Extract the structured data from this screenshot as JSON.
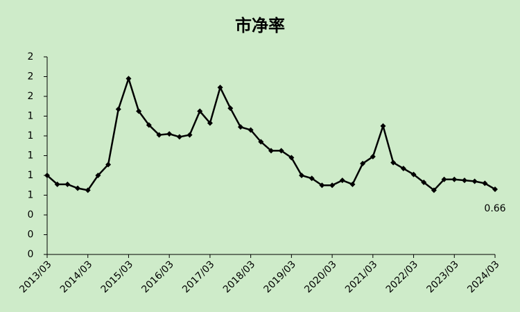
{
  "chart_data": {
    "type": "line",
    "title": "市净率",
    "categories": [
      "2013/03",
      null,
      null,
      null,
      "2014/03",
      null,
      null,
      null,
      "2015/03",
      null,
      null,
      null,
      "2016/03",
      null,
      null,
      null,
      "2017/03",
      null,
      null,
      null,
      "2018/03",
      null,
      null,
      null,
      "2019/03",
      null,
      null,
      null,
      "2020/03",
      null,
      null,
      null,
      "2021/03",
      null,
      null,
      null,
      "2022/03",
      null,
      null,
      null,
      "2023/03",
      null,
      null,
      null,
      "2024/03"
    ],
    "values": [
      0.8,
      0.71,
      0.71,
      0.67,
      0.65,
      0.8,
      0.91,
      1.47,
      1.78,
      1.45,
      1.31,
      1.21,
      1.22,
      1.19,
      1.21,
      1.45,
      1.33,
      1.69,
      1.48,
      1.29,
      1.26,
      1.14,
      1.05,
      1.05,
      0.98,
      0.8,
      0.77,
      0.7,
      0.7,
      0.75,
      0.71,
      0.92,
      0.99,
      1.3,
      0.93,
      0.87,
      0.81,
      0.73,
      0.65,
      0.76,
      0.76,
      0.75,
      0.74,
      0.72,
      0.66
    ],
    "color": "#000000",
    "ylim": [
      0,
      2
    ],
    "yticks": [
      {
        "value": 0,
        "label": "0"
      },
      {
        "value": 0.2,
        "label": "0"
      },
      {
        "value": 0.4,
        "label": "0"
      },
      {
        "value": 0.6,
        "label": "1"
      },
      {
        "value": 0.8,
        "label": "1"
      },
      {
        "value": 1.0,
        "label": "1"
      },
      {
        "value": 1.2,
        "label": "1"
      },
      {
        "value": 1.4,
        "label": "1"
      },
      {
        "value": 1.6,
        "label": "2"
      },
      {
        "value": 1.8,
        "label": "2"
      },
      {
        "value": 2.0,
        "label": "2"
      }
    ],
    "grid": false,
    "label_last": true
  }
}
